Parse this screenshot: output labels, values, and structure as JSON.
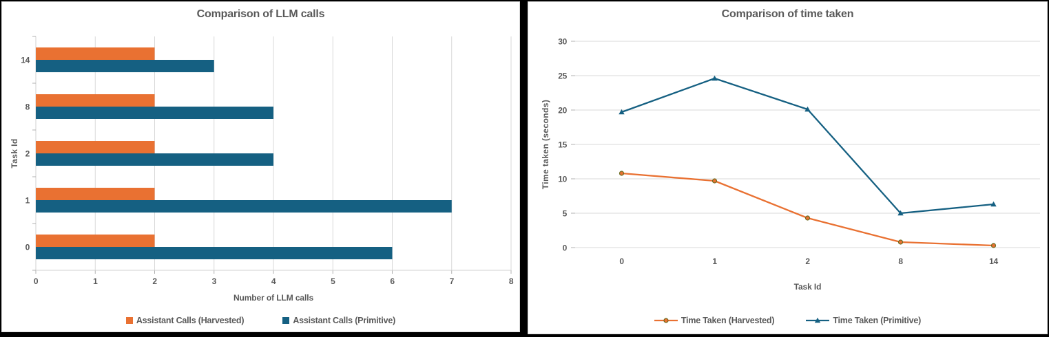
{
  "theme": {
    "background": "#000000",
    "panel_bg": "#ffffff",
    "panel_border": "#d9d9d9",
    "grid_color": "#d9d9d9",
    "axis_line_color": "#d0d0d0",
    "tick_color": "#b0b0b0",
    "text_color": "#595959",
    "orange": "#E97132",
    "blue": "#156082",
    "marker_outline": "#6B6B1F"
  },
  "chart_data": [
    {
      "type": "bar",
      "orientation": "horizontal",
      "title": "Comparison of LLM calls",
      "xlabel": "Number of LLM calls",
      "ylabel": "Task Id",
      "categories": [
        "0",
        "1",
        "2",
        "8",
        "14"
      ],
      "series": [
        {
          "name": "Assistant Calls (Harvested)",
          "color_key": "orange",
          "values": [
            2,
            2,
            2,
            2,
            2
          ]
        },
        {
          "name": "Assistant Calls (Primitive)",
          "color_key": "blue",
          "values": [
            6,
            7,
            4,
            4,
            3
          ]
        }
      ],
      "xlim": [
        0,
        8
      ],
      "xticks": [
        0,
        1,
        2,
        3,
        4,
        5,
        6,
        7,
        8
      ],
      "grid": "vertical",
      "legend_position": "bottom"
    },
    {
      "type": "line",
      "title": "Comparison of time taken",
      "xlabel": "Task Id",
      "ylabel": "Time taken (seconds)",
      "categories": [
        "0",
        "1",
        "2",
        "8",
        "14"
      ],
      "series": [
        {
          "name": "Time Taken (Harvested)",
          "color_key": "orange",
          "marker": "circle",
          "values": [
            10.8,
            9.7,
            4.3,
            0.8,
            0.3
          ]
        },
        {
          "name": "Time Taken (Primitive)",
          "color_key": "blue",
          "marker": "triangle",
          "values": [
            19.7,
            24.6,
            20.1,
            5.0,
            6.3
          ]
        }
      ],
      "ylim": [
        0,
        30
      ],
      "yticks": [
        0,
        5,
        10,
        15,
        20,
        25,
        30
      ],
      "grid": "horizontal",
      "legend_position": "bottom"
    }
  ]
}
